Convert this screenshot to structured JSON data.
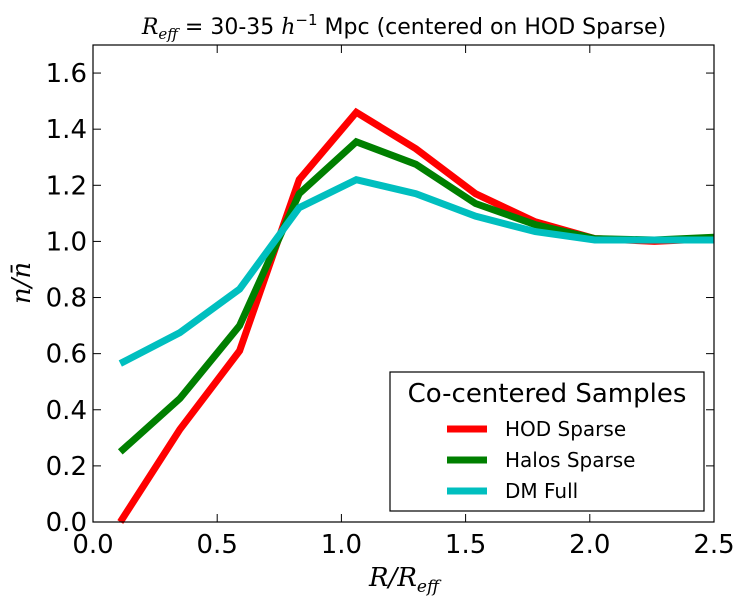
{
  "chart_data": {
    "type": "line",
    "title_math": "R",
    "title_math_sub": "eff",
    "title_mid": " = 30-35 ",
    "title_unit_math": "h",
    "title_unit_sup": "−1",
    "title_rest": " Mpc (centered on HOD Sparse)",
    "xlabel": "R/R",
    "xlabel_sub": "eff",
    "ylabel": "n/n̄",
    "xlim": [
      0.0,
      2.5
    ],
    "ylim": [
      0.0,
      1.7
    ],
    "xticks": [
      0.0,
      0.5,
      1.0,
      1.5,
      2.0,
      2.5
    ],
    "xtick_labels": [
      "0.0",
      "0.5",
      "1.0",
      "1.5",
      "2.0",
      "2.5"
    ],
    "yticks": [
      0.0,
      0.2,
      0.4,
      0.6,
      0.8,
      1.0,
      1.2,
      1.4,
      1.6
    ],
    "ytick_labels": [
      "0.0",
      "0.2",
      "0.4",
      "0.6",
      "0.8",
      "1.0",
      "1.2",
      "1.4",
      "1.6"
    ],
    "x": [
      0.11,
      0.35,
      0.59,
      0.83,
      1.06,
      1.3,
      1.54,
      1.78,
      2.02,
      2.26,
      2.5
    ],
    "series": [
      {
        "name": "HOD Sparse",
        "color": "#ff0000",
        "values": [
          0.0,
          0.33,
          0.61,
          1.22,
          1.46,
          1.33,
          1.17,
          1.07,
          1.01,
          1.0,
          1.01
        ]
      },
      {
        "name": "Halos Sparse",
        "color": "#007f00",
        "values": [
          0.25,
          0.44,
          0.7,
          1.17,
          1.355,
          1.275,
          1.135,
          1.06,
          1.01,
          1.005,
          1.015
        ]
      },
      {
        "name": "DM Full",
        "color": "#00bfbf",
        "values": [
          0.565,
          0.675,
          0.83,
          1.12,
          1.22,
          1.17,
          1.09,
          1.035,
          1.005,
          1.005,
          1.005
        ]
      }
    ],
    "legend_title": "Co-centered Samples",
    "legend_position": "bottom-right"
  }
}
